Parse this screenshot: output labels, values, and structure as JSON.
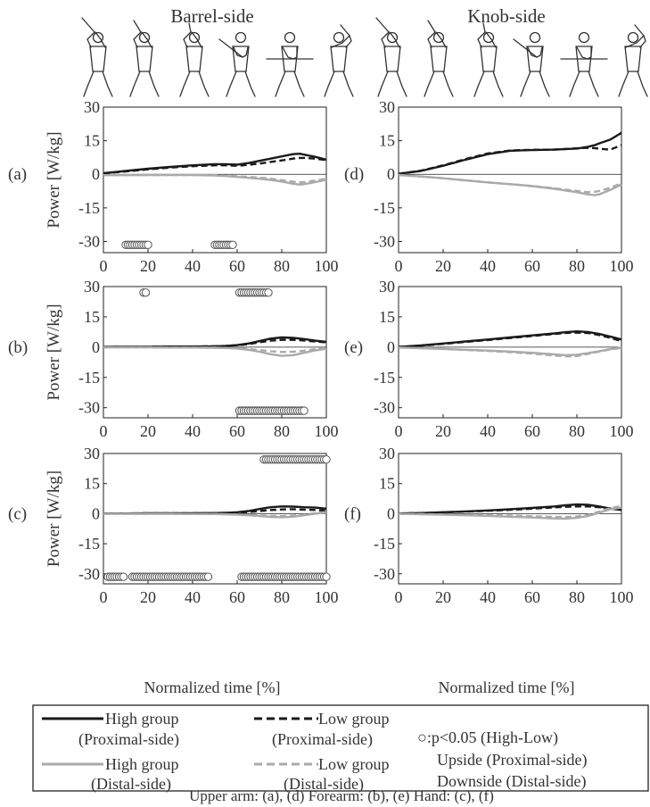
{
  "columns": [
    {
      "title": "Barrel-side"
    },
    {
      "title": "Knob-side"
    }
  ],
  "ylabel": "Power [W/kg]",
  "xlabel": "Normalized time [%]",
  "caption": "Upper arm: (a), (d)   Forearm: (b), (e)   Hand: (c), (f)",
  "legend": {
    "high_prox": [
      "High group",
      "(Proximal-side)"
    ],
    "low_prox": [
      "Low group",
      "(Proximal-side)"
    ],
    "high_dist": [
      "High group",
      "(Distal-side)"
    ],
    "low_dist": [
      "Low group",
      "(Distal-side)"
    ],
    "sig": [
      "○:p<0.05 (High-Low)",
      "Upside (Proximal-side)",
      "Downside (Distal-side)"
    ]
  },
  "colors": {
    "dark": "#1a1a1a",
    "gray": "#aaaaaa"
  },
  "chart_data": [
    {
      "type": "line",
      "label": "(a)",
      "xlim": [
        0,
        100
      ],
      "ylim": [
        -35,
        30
      ],
      "xticks": [
        0,
        20,
        40,
        60,
        80,
        100
      ],
      "yticks": [
        30,
        15,
        0,
        -15,
        -30
      ],
      "x": [
        0,
        10,
        20,
        30,
        40,
        50,
        55,
        60,
        65,
        70,
        75,
        80,
        85,
        88,
        90,
        95,
        100
      ],
      "series": [
        {
          "name": "High group (Proximal-side)",
          "style": "high_prox",
          "values": [
            0.5,
            1.5,
            2.5,
            3.3,
            4.0,
            4.5,
            4.5,
            4.3,
            5.0,
            6.0,
            7.0,
            8.0,
            9.0,
            9.2,
            8.8,
            7.8,
            6.5
          ]
        },
        {
          "name": "Low group (Proximal-side)",
          "style": "low_prox",
          "values": [
            0.4,
            1.3,
            2.2,
            3.0,
            3.6,
            4.0,
            4.0,
            3.8,
            4.2,
            4.8,
            5.5,
            6.2,
            7.0,
            7.3,
            7.3,
            7.0,
            6.3
          ]
        },
        {
          "name": "High group (Distal-side)",
          "style": "high_dist",
          "values": [
            -0.4,
            -0.4,
            -0.3,
            -0.3,
            -0.3,
            -0.5,
            -0.8,
            -1.2,
            -1.6,
            -2.0,
            -2.5,
            -3.2,
            -4.2,
            -4.6,
            -4.4,
            -3.5,
            -2.5
          ]
        },
        {
          "name": "Low group (Distal-side)",
          "style": "low_dist",
          "values": [
            -0.4,
            -0.4,
            -0.3,
            -0.3,
            -0.3,
            -0.4,
            -0.6,
            -0.9,
            -1.2,
            -1.5,
            -2.0,
            -2.6,
            -3.3,
            -3.6,
            -3.5,
            -2.8,
            -2.0
          ]
        }
      ],
      "significance": {
        "upside": [],
        "downside": [
          10,
          11,
          12,
          13,
          14,
          15,
          16,
          17,
          18,
          19,
          20,
          50,
          51,
          52,
          53,
          54,
          55,
          56,
          57,
          58
        ]
      }
    },
    {
      "type": "line",
      "label": "(b)",
      "xlim": [
        0,
        100
      ],
      "ylim": [
        -35,
        30
      ],
      "xticks": [
        0,
        20,
        40,
        60,
        80,
        100
      ],
      "yticks": [
        30,
        15,
        0,
        -15,
        -30
      ],
      "x": [
        0,
        10,
        20,
        30,
        40,
        50,
        55,
        60,
        65,
        70,
        75,
        80,
        85,
        90,
        95,
        100
      ],
      "series": [
        {
          "name": "High group (Proximal-side)",
          "style": "high_prox",
          "values": [
            0.1,
            0.2,
            0.2,
            0.3,
            0.3,
            0.4,
            0.6,
            1.0,
            1.8,
            3.0,
            4.2,
            4.8,
            4.6,
            4.0,
            3.2,
            2.6
          ]
        },
        {
          "name": "Low group (Proximal-side)",
          "style": "low_prox",
          "values": [
            0.1,
            0.2,
            0.2,
            0.3,
            0.3,
            0.4,
            0.6,
            0.9,
            1.5,
            2.4,
            3.2,
            3.6,
            3.6,
            3.3,
            2.8,
            2.3
          ]
        },
        {
          "name": "High group (Distal-side)",
          "style": "high_dist",
          "values": [
            -0.1,
            -0.1,
            -0.1,
            -0.2,
            -0.2,
            -0.3,
            -0.4,
            -0.7,
            -1.3,
            -2.3,
            -3.5,
            -4.3,
            -4.0,
            -2.8,
            -1.6,
            -0.8
          ]
        },
        {
          "name": "Low group (Distal-side)",
          "style": "low_dist",
          "values": [
            -0.1,
            -0.1,
            -0.1,
            -0.2,
            -0.2,
            -0.3,
            -0.4,
            -0.6,
            -1.0,
            -1.5,
            -2.0,
            -2.4,
            -2.3,
            -1.8,
            -1.0,
            -0.5
          ]
        }
      ],
      "significance": {
        "upside": [
          18,
          19,
          61,
          62,
          63,
          64,
          65,
          66,
          67,
          68,
          69,
          70,
          71,
          72,
          73,
          74
        ],
        "downside": [
          61,
          62,
          63,
          64,
          65,
          66,
          67,
          68,
          69,
          70,
          71,
          72,
          73,
          74,
          75,
          76,
          77,
          78,
          79,
          80,
          81,
          82,
          83,
          84,
          85,
          86,
          87,
          88,
          89,
          90
        ]
      }
    },
    {
      "type": "line",
      "label": "(c)",
      "xlim": [
        0,
        100
      ],
      "ylim": [
        -35,
        30
      ],
      "xticks": [
        0,
        20,
        40,
        60,
        80,
        100
      ],
      "yticks": [
        30,
        15,
        0,
        -15,
        -30
      ],
      "x": [
        0,
        10,
        20,
        30,
        40,
        50,
        55,
        60,
        65,
        70,
        75,
        80,
        85,
        90,
        95,
        100
      ],
      "series": [
        {
          "name": "High group (Proximal-side)",
          "style": "high_prox",
          "values": [
            0.1,
            0.1,
            0.2,
            0.2,
            0.2,
            0.3,
            0.4,
            0.7,
            1.3,
            2.3,
            3.2,
            3.6,
            3.5,
            3.2,
            3.0,
            2.5
          ]
        },
        {
          "name": "Low group (Proximal-side)",
          "style": "low_prox",
          "values": [
            0.1,
            0.1,
            0.2,
            0.2,
            0.2,
            0.3,
            0.4,
            0.5,
            0.8,
            1.3,
            1.8,
            2.1,
            2.2,
            2.0,
            1.8,
            1.5
          ]
        },
        {
          "name": "High group (Distal-side)",
          "style": "high_dist",
          "values": [
            -0.1,
            -0.1,
            -0.1,
            -0.1,
            -0.2,
            -0.2,
            -0.3,
            -0.5,
            -0.8,
            -1.2,
            -1.6,
            -1.8,
            -1.5,
            -0.8,
            0.0,
            0.6
          ]
        },
        {
          "name": "Low group (Distal-side)",
          "style": "low_dist",
          "values": [
            -0.1,
            -0.1,
            -0.1,
            -0.1,
            -0.2,
            -0.2,
            -0.3,
            -0.4,
            -0.6,
            -0.9,
            -1.1,
            -1.2,
            -1.0,
            -0.5,
            0.2,
            0.8
          ]
        }
      ],
      "significance": {
        "upside": [
          72,
          73,
          74,
          75,
          76,
          77,
          78,
          79,
          80,
          81,
          82,
          83,
          84,
          85,
          86,
          87,
          88,
          89,
          90,
          91,
          92,
          93,
          94,
          95,
          96,
          97,
          98,
          99,
          100
        ],
        "downside": [
          2,
          3,
          4,
          5,
          6,
          7,
          8,
          9,
          13,
          14,
          15,
          16,
          17,
          18,
          19,
          20,
          21,
          22,
          23,
          24,
          25,
          26,
          27,
          28,
          29,
          30,
          31,
          32,
          33,
          34,
          35,
          36,
          37,
          38,
          39,
          40,
          41,
          42,
          43,
          44,
          45,
          46,
          47,
          62,
          63,
          64,
          65,
          66,
          67,
          68,
          69,
          70,
          71,
          72,
          73,
          74,
          75,
          76,
          77,
          78,
          79,
          80,
          81,
          82,
          83,
          84,
          85,
          86,
          87,
          88,
          89,
          90,
          91,
          92,
          93,
          94,
          95,
          96,
          97,
          98,
          99,
          100
        ]
      }
    },
    {
      "type": "line",
      "label": "(d)",
      "xlim": [
        0,
        100
      ],
      "ylim": [
        -35,
        30
      ],
      "xticks": [
        0,
        20,
        40,
        60,
        80,
        100
      ],
      "yticks": [
        30,
        15,
        0,
        -15,
        -30
      ],
      "x": [
        0,
        10,
        20,
        30,
        40,
        50,
        55,
        60,
        70,
        80,
        85,
        88,
        90,
        95,
        100
      ],
      "series": [
        {
          "name": "High group (Proximal-side)",
          "style": "high_prox",
          "values": [
            0.2,
            1.5,
            3.8,
            6.5,
            9.0,
            10.5,
            10.7,
            10.8,
            11.0,
            11.5,
            12.3,
            13.0,
            13.8,
            15.5,
            18.5
          ]
        },
        {
          "name": "Low group (Proximal-side)",
          "style": "low_prox",
          "values": [
            0.2,
            1.6,
            4.0,
            6.8,
            9.3,
            10.6,
            10.8,
            10.9,
            11.0,
            11.6,
            11.8,
            11.7,
            11.4,
            11.0,
            13.0
          ]
        },
        {
          "name": "High group (Distal-side)",
          "style": "high_dist",
          "values": [
            -0.3,
            -1.0,
            -1.8,
            -2.7,
            -3.6,
            -4.4,
            -4.8,
            -5.3,
            -6.5,
            -8.0,
            -9.0,
            -9.3,
            -9.0,
            -7.0,
            -4.5
          ]
        },
        {
          "name": "Low group (Distal-side)",
          "style": "low_dist",
          "values": [
            -0.3,
            -1.0,
            -1.8,
            -2.7,
            -3.6,
            -4.4,
            -4.8,
            -5.2,
            -6.3,
            -7.5,
            -8.0,
            -7.8,
            -7.5,
            -6.0,
            -4.0
          ]
        }
      ],
      "significance": {
        "upside": [],
        "downside": []
      }
    },
    {
      "type": "line",
      "label": "(e)",
      "xlim": [
        0,
        100
      ],
      "ylim": [
        -35,
        30
      ],
      "xticks": [
        0,
        20,
        40,
        60,
        80,
        100
      ],
      "yticks": [
        30,
        15,
        0,
        -15,
        -30
      ],
      "x": [
        0,
        10,
        20,
        30,
        40,
        50,
        60,
        70,
        75,
        80,
        85,
        90,
        95,
        100
      ],
      "series": [
        {
          "name": "High group (Proximal-side)",
          "style": "high_prox",
          "values": [
            0.1,
            0.8,
            1.8,
            2.8,
            3.8,
            4.8,
            5.8,
            6.8,
            7.4,
            7.8,
            7.5,
            6.5,
            5.2,
            3.8
          ]
        },
        {
          "name": "Low group (Proximal-side)",
          "style": "low_prox",
          "values": [
            0.1,
            0.7,
            1.6,
            2.6,
            3.5,
            4.5,
            5.5,
            6.5,
            7.0,
            7.2,
            7.0,
            6.0,
            4.6,
            3.0
          ]
        },
        {
          "name": "High group (Distal-side)",
          "style": "high_dist",
          "values": [
            -0.2,
            -0.5,
            -0.9,
            -1.3,
            -1.7,
            -2.2,
            -2.8,
            -3.6,
            -4.0,
            -3.8,
            -3.0,
            -2.0,
            -1.0,
            -0.3
          ]
        },
        {
          "name": "Low group (Distal-side)",
          "style": "low_dist",
          "values": [
            -0.2,
            -0.5,
            -0.9,
            -1.4,
            -1.9,
            -2.5,
            -3.2,
            -4.2,
            -4.6,
            -4.4,
            -3.4,
            -2.2,
            -1.1,
            -0.4
          ]
        }
      ],
      "significance": {
        "upside": [],
        "downside": []
      }
    },
    {
      "type": "line",
      "label": "(f)",
      "xlim": [
        0,
        100
      ],
      "ylim": [
        -35,
        30
      ],
      "xticks": [
        0,
        20,
        40,
        60,
        80,
        100
      ],
      "yticks": [
        30,
        15,
        0,
        -15,
        -30
      ],
      "x": [
        0,
        10,
        20,
        30,
        40,
        50,
        60,
        70,
        75,
        80,
        85,
        90,
        95,
        100
      ],
      "series": [
        {
          "name": "High group (Proximal-side)",
          "style": "high_prox",
          "values": [
            0.1,
            0.3,
            0.7,
            1.1,
            1.6,
            2.2,
            2.9,
            3.6,
            4.2,
            4.6,
            4.4,
            3.6,
            2.5,
            1.8
          ]
        },
        {
          "name": "Low group (Proximal-side)",
          "style": "low_prox",
          "values": [
            0.1,
            0.3,
            0.6,
            1.0,
            1.4,
            1.9,
            2.5,
            3.1,
            3.4,
            3.6,
            3.6,
            3.2,
            2.6,
            2.0
          ]
        },
        {
          "name": "High group (Distal-side)",
          "style": "high_dist",
          "values": [
            -0.1,
            -0.3,
            -0.5,
            -0.8,
            -1.1,
            -1.5,
            -1.9,
            -2.4,
            -2.5,
            -2.1,
            -1.2,
            0.5,
            2.2,
            3.0
          ]
        },
        {
          "name": "Low group (Distal-side)",
          "style": "low_dist",
          "values": [
            -0.1,
            -0.2,
            -0.4,
            -0.6,
            -0.8,
            -1.0,
            -1.3,
            -1.6,
            -1.7,
            -1.4,
            -0.6,
            1.0,
            2.8,
            3.8
          ]
        }
      ],
      "significance": {
        "upside": [],
        "downside": []
      }
    }
  ]
}
